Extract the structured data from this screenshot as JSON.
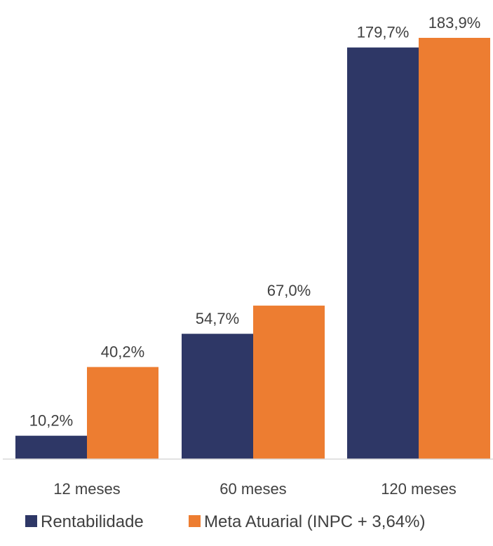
{
  "chart_data": {
    "type": "bar",
    "title": "",
    "xlabel": "",
    "ylabel": "",
    "categories": [
      "12 meses",
      "60 meses",
      "120 meses"
    ],
    "series": [
      {
        "name": "Rentabilidade",
        "color": "#2e3766",
        "values": [
          10.2,
          54.7,
          179.7
        ],
        "labels": [
          "10,2%",
          "54,7%",
          "179,7%"
        ]
      },
      {
        "name": "Meta Atuarial (INPC + 3,64%)",
        "color": "#ed7d31",
        "values": [
          40.2,
          67.0,
          183.9
        ],
        "labels": [
          "40,2%",
          "67,0%",
          "183,9%"
        ]
      }
    ],
    "ylim": [
      0,
      183.9
    ],
    "grid": false,
    "legend": "bottom"
  }
}
